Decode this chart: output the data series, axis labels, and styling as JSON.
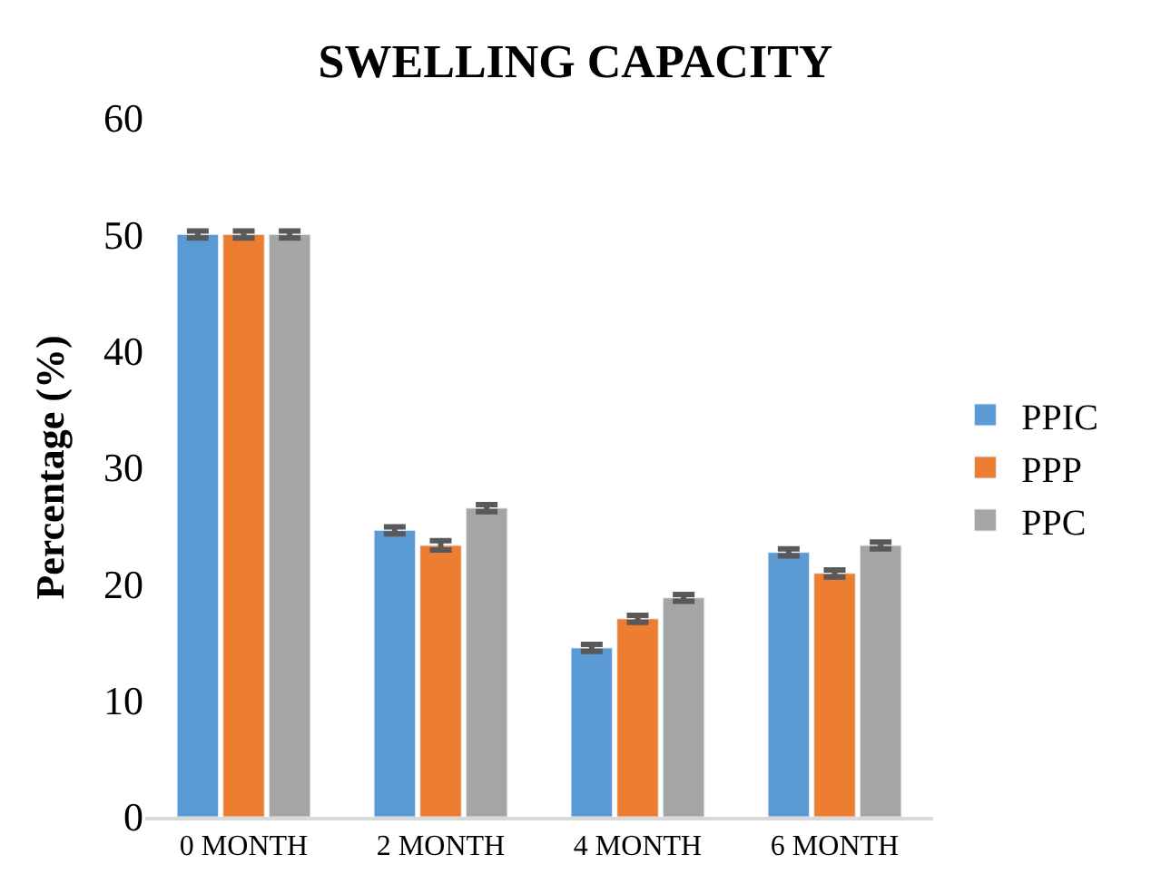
{
  "chart_data": {
    "type": "bar",
    "title": "SWELLING CAPACITY",
    "ylabel": "Percentage (%)",
    "categories": [
      "0 MONTH",
      "2 MONTH",
      "4 MONTH",
      "6 MONTH"
    ],
    "series": [
      {
        "name": "PPIC",
        "color": "#5b9bd5",
        "values": [
          50,
          24.6,
          14.5,
          22.7
        ],
        "errors": [
          0.3,
          0.3,
          0.3,
          0.3
        ]
      },
      {
        "name": "PPP",
        "color": "#ed7d31",
        "values": [
          50,
          23.3,
          17.0,
          20.9
        ],
        "errors": [
          0.3,
          0.4,
          0.3,
          0.3
        ]
      },
      {
        "name": "PPC",
        "color": "#a5a5a5",
        "values": [
          50,
          26.5,
          18.8,
          23.3
        ],
        "errors": [
          0.3,
          0.3,
          0.3,
          0.3
        ]
      }
    ],
    "ylim": [
      0,
      60
    ],
    "yticks": [
      0,
      10,
      20,
      30,
      40,
      50,
      60
    ],
    "legend": "right"
  }
}
